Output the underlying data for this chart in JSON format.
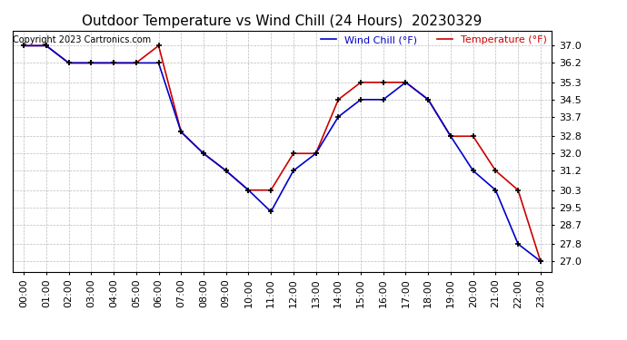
{
  "title": "Outdoor Temperature vs Wind Chill (24 Hours)  20230329",
  "copyright_text": "Copyright 2023 Cartronics.com",
  "legend_wind_chill": "Wind Chill (°F)",
  "legend_temperature": "Temperature (°F)",
  "x_labels": [
    "00:00",
    "01:00",
    "02:00",
    "03:00",
    "04:00",
    "05:00",
    "06:00",
    "07:00",
    "08:00",
    "09:00",
    "10:00",
    "11:00",
    "12:00",
    "13:00",
    "14:00",
    "15:00",
    "16:00",
    "17:00",
    "18:00",
    "19:00",
    "20:00",
    "21:00",
    "22:00",
    "23:00"
  ],
  "temperature": [
    37.0,
    37.0,
    36.2,
    36.2,
    36.2,
    36.2,
    37.0,
    33.0,
    32.0,
    31.2,
    30.3,
    30.3,
    32.0,
    32.0,
    34.5,
    35.3,
    35.3,
    35.3,
    34.5,
    32.8,
    32.8,
    31.2,
    30.3,
    27.0
  ],
  "wind_chill": [
    37.0,
    37.0,
    36.2,
    36.2,
    36.2,
    36.2,
    36.2,
    33.0,
    32.0,
    31.2,
    30.3,
    29.3,
    31.2,
    32.0,
    33.7,
    34.5,
    34.5,
    35.3,
    34.5,
    32.8,
    31.2,
    30.3,
    27.8,
    27.0
  ],
  "ylim_min": 26.5,
  "ylim_max": 37.7,
  "yticks": [
    27.0,
    27.8,
    28.7,
    29.5,
    30.3,
    31.2,
    32.0,
    32.8,
    33.7,
    34.5,
    35.3,
    36.2,
    37.0
  ],
  "temp_color": "#cc0000",
  "wind_color": "#0000cc",
  "marker_color": "#000000",
  "bg_color": "#ffffff",
  "grid_color": "#bbbbbb",
  "title_fontsize": 11,
  "tick_fontsize": 8,
  "legend_fontsize": 8,
  "copyright_fontsize": 7
}
